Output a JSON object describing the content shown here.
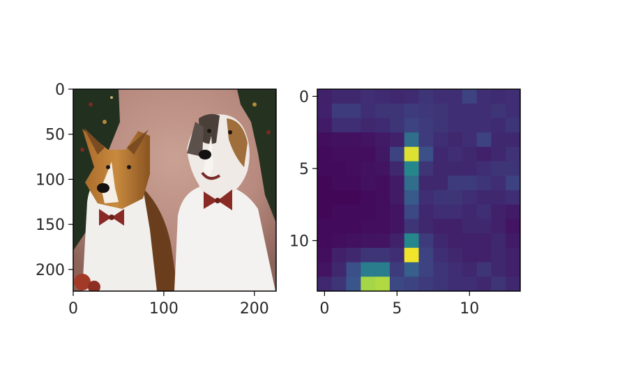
{
  "chart_data": [
    {
      "type": "image",
      "content": "photo of two collie dogs wearing red bow ties in front of a pink backdrop and evergreen garland",
      "xticks": [
        "0",
        "100",
        "200"
      ],
      "yticks": [
        "0",
        "50",
        "100",
        "150",
        "200"
      ],
      "xlim": [
        0,
        224
      ],
      "ylim": [
        224,
        0
      ]
    },
    {
      "type": "heatmap",
      "colormap": "viridis",
      "shape": [
        14,
        14
      ],
      "xticks": [
        "0",
        "5",
        "10"
      ],
      "yticks": [
        "0",
        "5",
        "10"
      ],
      "values": [
        [
          0.1,
          0.12,
          0.12,
          0.14,
          0.13,
          0.12,
          0.13,
          0.16,
          0.14,
          0.14,
          0.2,
          0.14,
          0.13,
          0.14
        ],
        [
          0.1,
          0.18,
          0.18,
          0.14,
          0.16,
          0.16,
          0.18,
          0.17,
          0.16,
          0.14,
          0.14,
          0.14,
          0.16,
          0.14
        ],
        [
          0.08,
          0.14,
          0.14,
          0.12,
          0.13,
          0.16,
          0.2,
          0.18,
          0.16,
          0.14,
          0.14,
          0.14,
          0.13,
          0.16
        ],
        [
          0.04,
          0.05,
          0.05,
          0.06,
          0.08,
          0.1,
          0.36,
          0.18,
          0.14,
          0.12,
          0.14,
          0.2,
          0.12,
          0.12
        ],
        [
          0.03,
          0.04,
          0.04,
          0.04,
          0.07,
          0.2,
          0.95,
          0.24,
          0.12,
          0.14,
          0.12,
          0.1,
          0.12,
          0.15
        ],
        [
          0.03,
          0.03,
          0.04,
          0.05,
          0.06,
          0.12,
          0.46,
          0.16,
          0.12,
          0.12,
          0.12,
          0.14,
          0.16,
          0.16
        ],
        [
          0.02,
          0.03,
          0.03,
          0.05,
          0.04,
          0.08,
          0.36,
          0.12,
          0.12,
          0.18,
          0.18,
          0.16,
          0.14,
          0.2
        ],
        [
          0.02,
          0.02,
          0.02,
          0.03,
          0.04,
          0.08,
          0.28,
          0.14,
          0.16,
          0.16,
          0.14,
          0.12,
          0.12,
          0.14
        ],
        [
          0.02,
          0.03,
          0.03,
          0.03,
          0.04,
          0.06,
          0.22,
          0.12,
          0.14,
          0.14,
          0.12,
          0.14,
          0.1,
          0.08
        ],
        [
          0.03,
          0.03,
          0.03,
          0.04,
          0.04,
          0.06,
          0.16,
          0.12,
          0.1,
          0.1,
          0.12,
          0.12,
          0.1,
          0.06
        ],
        [
          0.03,
          0.04,
          0.05,
          0.06,
          0.06,
          0.1,
          0.46,
          0.18,
          0.12,
          0.1,
          0.1,
          0.1,
          0.12,
          0.08
        ],
        [
          0.04,
          0.1,
          0.12,
          0.16,
          0.16,
          0.14,
          0.98,
          0.2,
          0.14,
          0.12,
          0.1,
          0.1,
          0.12,
          0.1
        ],
        [
          0.06,
          0.12,
          0.24,
          0.42,
          0.42,
          0.18,
          0.3,
          0.2,
          0.16,
          0.14,
          0.12,
          0.16,
          0.12,
          0.1
        ],
        [
          0.12,
          0.16,
          0.26,
          0.86,
          0.88,
          0.22,
          0.2,
          0.18,
          0.16,
          0.14,
          0.14,
          0.12,
          0.16,
          0.12
        ]
      ]
    }
  ]
}
